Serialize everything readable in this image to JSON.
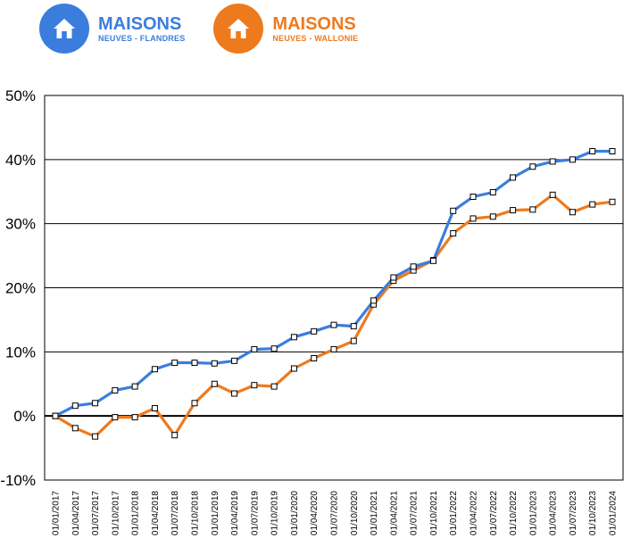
{
  "legend": [
    {
      "title": "MAISONS",
      "subtitle": "NEUVES - FLANDRES",
      "color": "#3B7DDD",
      "icon": "house-icon"
    },
    {
      "title": "MAISONS",
      "subtitle": "NEUVES - WALLONIE",
      "color": "#EE7A1E",
      "icon": "house-icon"
    }
  ],
  "chart_data": {
    "type": "line",
    "x": [
      "01/01/2017",
      "01/04/2017",
      "01/07/2017",
      "01/10/2017",
      "01/01/2018",
      "01/04/2018",
      "01/07/2018",
      "01/10/2018",
      "01/01/2019",
      "01/04/2019",
      "01/07/2019",
      "01/10/2019",
      "01/01/2020",
      "01/04/2020",
      "01/07/2020",
      "01/10/2020",
      "01/01/2021",
      "01/04/2021",
      "01/07/2021",
      "01/10/2021",
      "01/01/2022",
      "01/04/2022",
      "01/07/2022",
      "01/10/2022",
      "01/01/2023",
      "01/04/2023",
      "01/07/2023",
      "01/10/2023",
      "01/01/2024"
    ],
    "series": [
      {
        "legend_index": 0,
        "color": "#3B7DDD",
        "values": [
          0.0,
          1.6,
          2.0,
          4.0,
          4.6,
          7.3,
          8.3,
          8.3,
          8.2,
          8.6,
          10.4,
          10.5,
          12.3,
          13.2,
          14.2,
          14.0,
          18.0,
          21.6,
          23.3,
          24.2,
          32.0,
          34.2,
          34.9,
          37.2,
          38.9,
          39.7,
          40.0,
          41.3,
          41.3
        ],
        "values_note_trim": 28
      },
      {
        "legend_index": 1,
        "color": "#EE7A1E",
        "values": [
          0.0,
          -1.9,
          -3.2,
          -0.2,
          -0.2,
          1.2,
          -3.0,
          2.0,
          5.0,
          3.5,
          4.8,
          4.6,
          7.4,
          9.0,
          10.4,
          11.7,
          17.4,
          21.1,
          22.7,
          24.3,
          28.5,
          30.8,
          31.1,
          32.1,
          32.2,
          34.5,
          31.8,
          33.0,
          33.4
        ]
      }
    ],
    "ylim": [
      -10,
      50
    ],
    "yticks": [
      -10,
      0,
      10,
      20,
      30,
      40,
      50
    ],
    "ytick_labels": [
      "-10%",
      "0%",
      "10%",
      "20%",
      "30%",
      "40%",
      "50%"
    ],
    "grid": true,
    "marker": "square"
  }
}
